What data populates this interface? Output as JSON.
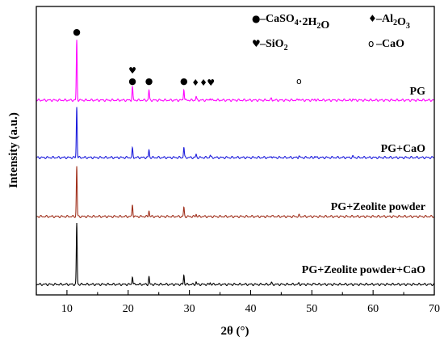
{
  "chart_data": {
    "type": "line",
    "xlabel": "2θ (°)",
    "ylabel": "Intensity (a.u.)",
    "xlim": [
      5,
      70
    ],
    "xticks": [
      10,
      20,
      30,
      40,
      50,
      60,
      70
    ],
    "y_ticks_shown": false,
    "grid": false,
    "legend": {
      "placement": "top-right",
      "entries": [
        {
          "symbol": "●",
          "sym_key": "dot-icon",
          "label_main": "–CaSO",
          "sub1": "4",
          "label_mid": "·2H",
          "sub2": "2",
          "label_end": "O"
        },
        {
          "symbol": "♦",
          "sym_key": "diamond-icon",
          "label_main": "–Al",
          "sub1": "2",
          "label_mid": "O",
          "sub2": "3",
          "label_end": ""
        },
        {
          "symbol": "♥",
          "sym_key": "heart-icon",
          "label_main": "–SiO",
          "sub1": "2",
          "label_mid": "",
          "sub2": "",
          "label_end": ""
        },
        {
          "symbol": "o",
          "sym_key": "circle-icon",
          "label_main": "–CaO",
          "sub1": "",
          "label_mid": "",
          "sub2": "",
          "label_end": ""
        }
      ]
    },
    "peak_markers": [
      {
        "x": 11.6,
        "stack": [
          "●"
        ]
      },
      {
        "x": 20.7,
        "stack": [
          "●",
          "♥"
        ]
      },
      {
        "x": 23.4,
        "stack": [
          "●"
        ]
      },
      {
        "x": 29.1,
        "stack": [
          "●"
        ]
      },
      {
        "x": 31.0,
        "stack": [
          "♦"
        ]
      },
      {
        "x": 32.3,
        "stack": [
          "♦"
        ]
      },
      {
        "x": 33.5,
        "stack": [
          "♥"
        ]
      },
      {
        "x": 47.9,
        "stack": [
          "o"
        ]
      }
    ],
    "series": [
      {
        "name": "PG",
        "color": "#ff00ff",
        "peaks": [
          {
            "x": 11.6,
            "h": 1.0
          },
          {
            "x": 20.7,
            "h": 0.22
          },
          {
            "x": 23.4,
            "h": 0.17
          },
          {
            "x": 29.1,
            "h": 0.19
          },
          {
            "x": 31.1,
            "h": 0.06
          },
          {
            "x": 33.4,
            "h": 0.04
          },
          {
            "x": 43.4,
            "h": 0.03
          },
          {
            "x": 47.9,
            "h": 0.03
          },
          {
            "x": 50.5,
            "h": 0.02
          },
          {
            "x": 56.7,
            "h": 0.02
          }
        ]
      },
      {
        "name": "PG+CaO",
        "color": "#1c1cdc",
        "peaks": [
          {
            "x": 11.6,
            "h": 0.85
          },
          {
            "x": 20.7,
            "h": 0.15
          },
          {
            "x": 23.4,
            "h": 0.13
          },
          {
            "x": 29.1,
            "h": 0.17
          },
          {
            "x": 31.1,
            "h": 0.05
          },
          {
            "x": 33.4,
            "h": 0.04
          },
          {
            "x": 43.4,
            "h": 0.03
          },
          {
            "x": 47.9,
            "h": 0.03
          },
          {
            "x": 50.5,
            "h": 0.02
          },
          {
            "x": 56.7,
            "h": 0.02
          }
        ]
      },
      {
        "name": "PG+Zeolite powder",
        "color": "#a0301c",
        "peaks": [
          {
            "x": 11.6,
            "h": 0.84
          },
          {
            "x": 20.7,
            "h": 0.2
          },
          {
            "x": 23.4,
            "h": 0.1
          },
          {
            "x": 29.1,
            "h": 0.15
          },
          {
            "x": 31.1,
            "h": 0.04
          },
          {
            "x": 43.4,
            "h": 0.02
          },
          {
            "x": 47.9,
            "h": 0.02
          }
        ]
      },
      {
        "name": "PG+Zeolite powder+CaO",
        "color": "#000000",
        "peaks": [
          {
            "x": 11.6,
            "h": 1.05
          },
          {
            "x": 20.7,
            "h": 0.14
          },
          {
            "x": 23.4,
            "h": 0.13
          },
          {
            "x": 29.1,
            "h": 0.16
          },
          {
            "x": 31.1,
            "h": 0.04
          },
          {
            "x": 33.4,
            "h": 0.03
          },
          {
            "x": 43.4,
            "h": 0.03
          },
          {
            "x": 47.9,
            "h": 0.02
          },
          {
            "x": 50.5,
            "h": 0.02
          }
        ]
      }
    ]
  }
}
